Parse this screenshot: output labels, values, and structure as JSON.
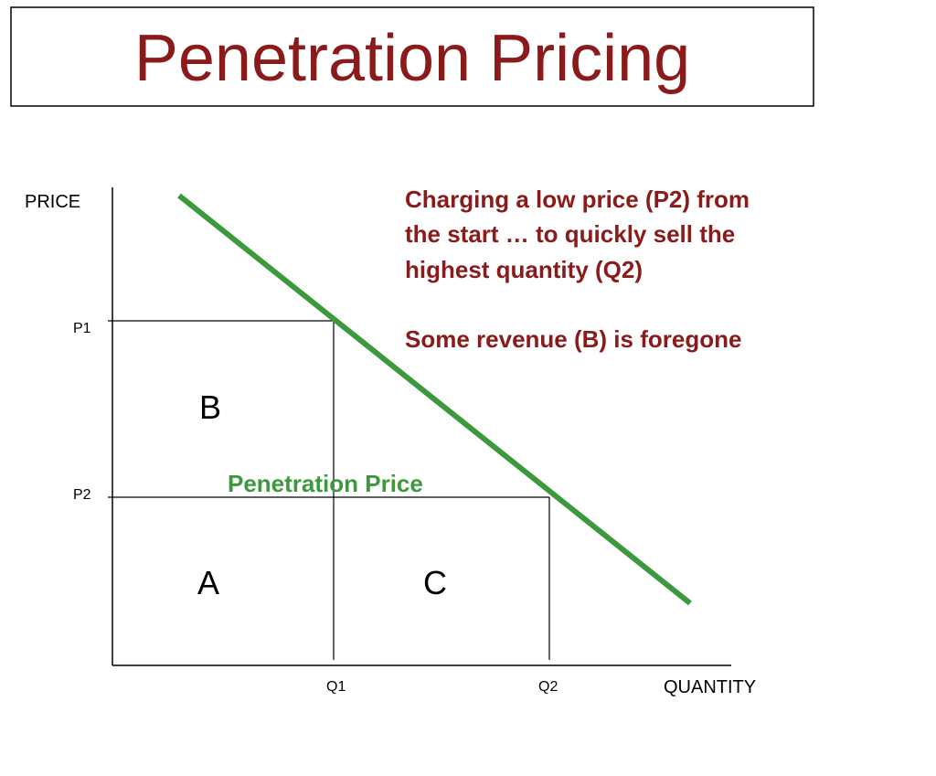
{
  "title": "Penetration Pricing",
  "axes": {
    "y_label": "PRICE",
    "x_label": "QUANTITY"
  },
  "prices": [
    "P1",
    "P2"
  ],
  "quantities": [
    "Q1",
    "Q2"
  ],
  "regions": [
    "A",
    "B",
    "C"
  ],
  "curve_label": "Penetration Price",
  "annotation": [
    "Charging a low price (P2) from",
    "the start … to quickly sell the",
    "highest quantity (Q2)",
    "Some revenue (B) is foregone"
  ]
}
